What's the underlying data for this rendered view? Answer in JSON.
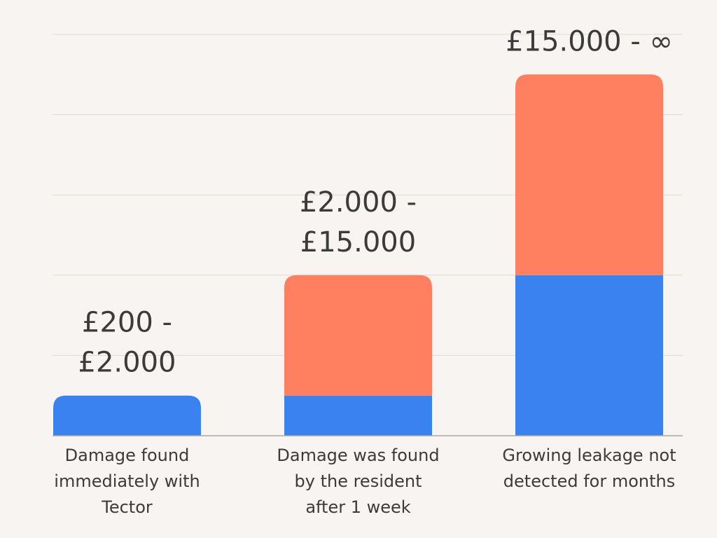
{
  "chart_data": {
    "type": "bar",
    "stacked": true,
    "categories": [
      "Damage found immediately with Tector",
      "Damage was found by the resident after 1 week",
      "Growing leakage not detected for months"
    ],
    "category_label_lines": [
      [
        "Damage found",
        "immediately with",
        "Tector"
      ],
      [
        "Damage was found",
        "by the resident",
        "after 1 week"
      ],
      [
        "Growing leakage not",
        "detected for months"
      ]
    ],
    "series": [
      {
        "color": "#3a82f0",
        "values": [
          0.5,
          0.5,
          2.0
        ]
      },
      {
        "color": "#ff8060",
        "values": [
          0,
          1.5,
          2.5
        ]
      }
    ],
    "value_labels": [
      [
        "£200 -",
        "£2.000"
      ],
      [
        "£2.000 -",
        "£15.000"
      ],
      [
        "£15.000 - ∞"
      ]
    ],
    "ylim": [
      0,
      5
    ],
    "grid": true,
    "colors": {
      "background": "#f8f4f1",
      "grid": "#dedad6",
      "axis": "#a9a7a4",
      "text": "#3b3b3b",
      "blue": "#3a82f0",
      "orange": "#ff8060"
    }
  }
}
